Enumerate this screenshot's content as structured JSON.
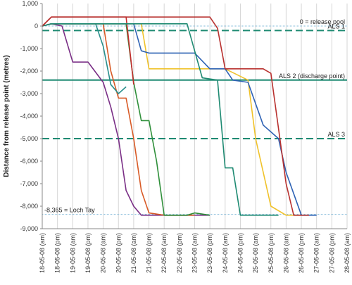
{
  "chart_data": {
    "type": "line",
    "title": "",
    "ylabel": "Distance from release point (metres)",
    "xlabel": "",
    "ylim": [
      -9000,
      1000
    ],
    "yticks": [
      1000,
      0,
      -1000,
      -2000,
      -3000,
      -4000,
      -5000,
      -6000,
      -7000,
      -8000,
      -9000
    ],
    "ytick_labels": [
      "1,000",
      "0",
      "-1,000",
      "-2,000",
      "-3,000",
      "-4,000",
      "-5,000",
      "-6,000",
      "-7,000",
      "-8,000",
      "-9,000"
    ],
    "x_categories": [
      "18-05-08 (am)",
      "18-05-08 (pm)",
      "19-05-08 (am)",
      "19-05-08 (pm)",
      "20-05-08 (am)",
      "20-05-08 (pm)",
      "21-05-08 (am)",
      "21-05-08 (pm)",
      "22-05-08 (am)",
      "22-05-08 (pm)",
      "23-05-08 (am)",
      "23-05-08 (pm)",
      "24-05-08 (am)",
      "24-05-08 (pm)",
      "25-05-08 (am)",
      "25-05-08 (pm)",
      "26-05-08 (am)",
      "26-05-08 (pm)",
      "27-05-08 (am)",
      "27-05-08 (pm)",
      "28-05-08 (am)"
    ],
    "grid": "vertical",
    "reference_lines": [
      {
        "label": "0 = release pool",
        "y": 0,
        "style": "dotted",
        "color": "#7fb8d8"
      },
      {
        "label": "ALS 1",
        "y": -200,
        "style": "dashed",
        "color": "#1e8a72"
      },
      {
        "label": "ALS 2 (discharge point)",
        "y": -2400,
        "style": "solid",
        "color": "#1e8a72"
      },
      {
        "label": "ALS 3",
        "y": -5000,
        "style": "dashed",
        "color": "#1e8a72"
      },
      {
        "label": "-8,365 = Loch Tay",
        "y": -8365,
        "style": "dotted",
        "color": "#7fb8d8"
      }
    ],
    "series": [
      {
        "color": "#7a2f86",
        "points": [
          [
            0,
            0
          ],
          [
            0.6,
            100
          ],
          [
            1.3,
            0
          ],
          [
            2,
            -1600
          ],
          [
            3,
            -1600
          ],
          [
            4,
            -2500
          ],
          [
            4.5,
            -3600
          ],
          [
            5,
            -5000
          ],
          [
            5.5,
            -7300
          ],
          [
            6,
            -8000
          ],
          [
            6.5,
            -8400
          ],
          [
            8,
            -8400
          ],
          [
            9,
            -8400
          ],
          [
            11,
            -8400
          ]
        ]
      },
      {
        "color": "#d85a26",
        "points": [
          [
            0,
            0
          ],
          [
            0.6,
            100
          ],
          [
            3,
            100
          ],
          [
            4,
            100
          ],
          [
            4.5,
            -2000
          ],
          [
            5,
            -3200
          ],
          [
            5.5,
            -3200
          ],
          [
            6,
            -5000
          ],
          [
            6.5,
            -7300
          ],
          [
            7,
            -8300
          ],
          [
            8,
            -8400
          ],
          [
            10,
            -8400
          ]
        ]
      },
      {
        "color": "#2f8f3a",
        "points": [
          [
            0,
            0
          ],
          [
            0.6,
            100
          ],
          [
            5.5,
            100
          ],
          [
            6,
            -2500
          ],
          [
            6.5,
            -4200
          ],
          [
            7,
            -4200
          ],
          [
            7.5,
            -6000
          ],
          [
            8,
            -8400
          ],
          [
            9.5,
            -8400
          ],
          [
            10,
            -8300
          ],
          [
            11,
            -8400
          ]
        ]
      },
      {
        "color": "#c42c2c",
        "points": [
          [
            0,
            0
          ],
          [
            0.6,
            400
          ],
          [
            5.5,
            400
          ],
          [
            6,
            -2600
          ]
        ]
      },
      {
        "color": "#2a8f8c",
        "points": [
          [
            0,
            0
          ],
          [
            0.6,
            100
          ],
          [
            3.5,
            100
          ],
          [
            4,
            -900
          ],
          [
            4.5,
            -2600
          ],
          [
            5,
            -3000
          ],
          [
            5.5,
            -2700
          ]
        ]
      },
      {
        "color": "#f0c22a",
        "points": [
          [
            0,
            0
          ],
          [
            0.6,
            100
          ],
          [
            6.5,
            100
          ],
          [
            7,
            -1900
          ],
          [
            11,
            -1900
          ],
          [
            12,
            -1900
          ],
          [
            13.5,
            -2400
          ],
          [
            14,
            -5000
          ],
          [
            15,
            -8000
          ],
          [
            16,
            -8400
          ],
          [
            17,
            -8400
          ]
        ]
      },
      {
        "color": "#2e62b4",
        "points": [
          [
            0,
            0
          ],
          [
            0.6,
            100
          ],
          [
            6,
            100
          ],
          [
            6.5,
            -1100
          ],
          [
            7,
            -1200
          ],
          [
            10,
            -1200
          ],
          [
            11,
            -1900
          ],
          [
            12,
            -1900
          ],
          [
            12.5,
            -2400
          ],
          [
            13.5,
            -2500
          ],
          [
            14.5,
            -4400
          ],
          [
            15.5,
            -5000
          ],
          [
            16,
            -6500
          ],
          [
            17,
            -8400
          ],
          [
            18,
            -8400
          ]
        ]
      },
      {
        "color": "#1e8a72",
        "points": [
          [
            0,
            0
          ],
          [
            0.6,
            100
          ],
          [
            9.5,
            100
          ],
          [
            10.5,
            -2300
          ],
          [
            11.5,
            -2400
          ],
          [
            12,
            -6300
          ],
          [
            12.5,
            -6300
          ],
          [
            13,
            -8400
          ],
          [
            15.5,
            -8400
          ]
        ]
      },
      {
        "color": "#b8312f",
        "points": [
          [
            0,
            0
          ],
          [
            0.6,
            400
          ],
          [
            11,
            400
          ],
          [
            11.5,
            -100
          ],
          [
            12,
            -1900
          ],
          [
            14.5,
            -1900
          ],
          [
            15,
            -2100
          ],
          [
            16,
            -7000
          ],
          [
            16.5,
            -8400
          ],
          [
            17.5,
            -8400
          ]
        ]
      }
    ]
  }
}
